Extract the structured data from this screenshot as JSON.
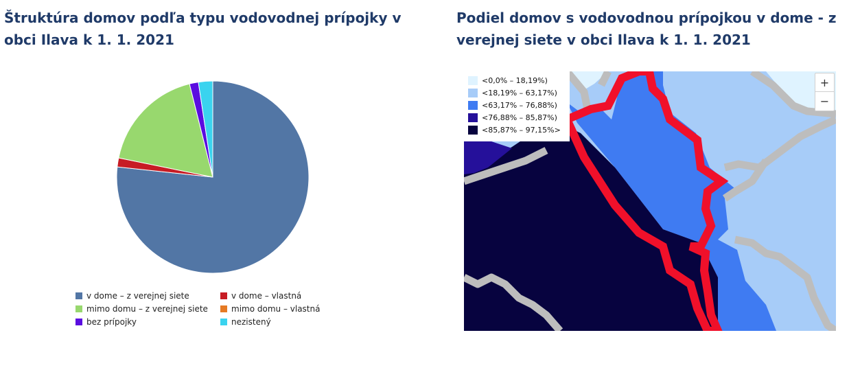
{
  "left_panel": {
    "title": "Štruktúra domov podľa typu vodovodnej prípojky v obci Ilava k 1. 1. 2021"
  },
  "right_panel": {
    "title": "Podiel domov s vodovodnou prípojkou v dome - z verejnej siete v obci Ilava k 1. 1. 2021",
    "legend": [
      {
        "label": "<0,0% – 18,19%)",
        "color": "#dff3ff"
      },
      {
        "label": "<18,19% – 63,17%)",
        "color": "#a7ccf8"
      },
      {
        "label": "<63,17% – 76,88%)",
        "color": "#3f7bf2"
      },
      {
        "label": "<76,88% – 85,87%)",
        "color": "#25109a"
      },
      {
        "label": "<85,87% – 97,15%>",
        "color": "#07033f"
      }
    ],
    "zoom_in_label": "+",
    "zoom_out_label": "−"
  },
  "chart_data": {
    "type": "pie",
    "title": "Štruktúra domov podľa typu vodovodnej prípojky v obci Ilava k 1. 1. 2021",
    "legend_position": "bottom",
    "categories": [
      "v dome – z verejnej siete",
      "v dome – vlastná",
      "mimo domu – z verejnej siete",
      "mimo domu – vlastná",
      "bez prípojky",
      "nezistený"
    ],
    "values": [
      76.7,
      1.5,
      17.9,
      0.0,
      1.5,
      2.4
    ],
    "colors": [
      "#5276a5",
      "#c71c24",
      "#98d86e",
      "#e57a24",
      "#5a0de0",
      "#3ad3ef"
    ]
  }
}
